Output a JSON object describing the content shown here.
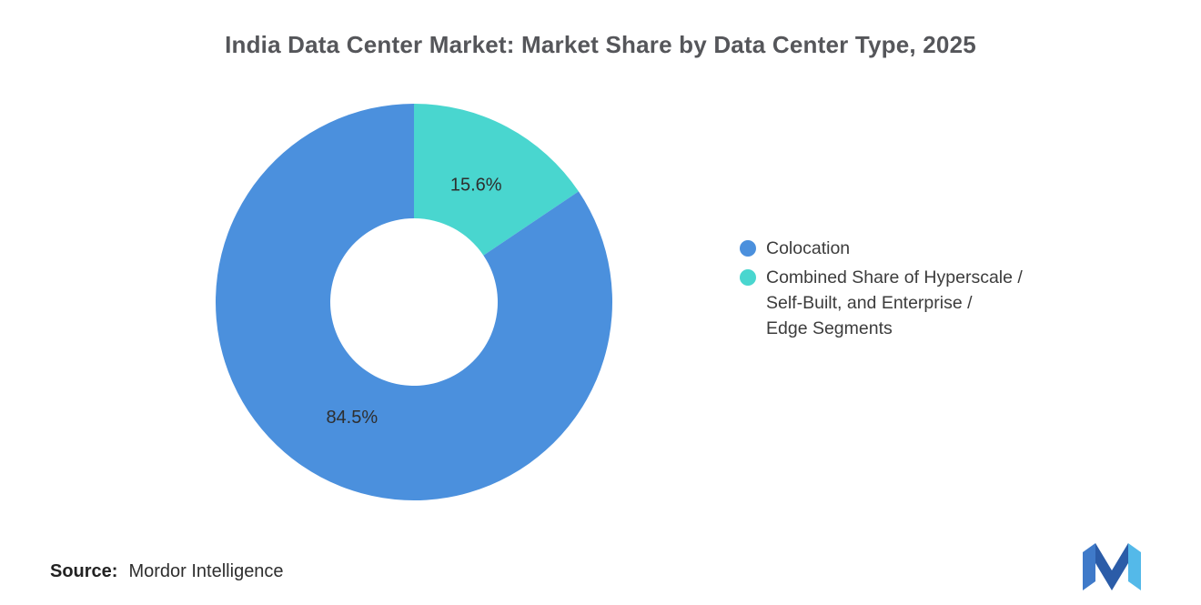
{
  "chart_data": {
    "type": "pie",
    "donut": true,
    "start_angle_deg": 0,
    "direction": "clockwise",
    "title": "India Data Center Market: Market Share by Data Center Type, 2025",
    "legend_position": "right",
    "slices": [
      {
        "id": "hyperscale-enterprise-edge",
        "name": "Combined Share of Hyperscale / Self-Built, and Enterprise / Edge Segments",
        "value": 15.6,
        "label": "15.6%",
        "color": "#49D6CF"
      },
      {
        "id": "colocation",
        "name": "Colocation",
        "value": 84.5,
        "label": "84.5%",
        "color": "#4B90DD"
      }
    ]
  },
  "legend": {
    "items": [
      {
        "label": "Colocation",
        "color": "#4B90DD"
      },
      {
        "label": "Combined Share of Hyperscale /\nSelf-Built, and Enterprise /\nEdge Segments",
        "color": "#49D6CF"
      }
    ]
  },
  "source": {
    "prefix": "Source:",
    "text": "Mordor Intelligence"
  },
  "logo": {
    "name": "mordor-intelligence-logo",
    "colors": {
      "left": "#3F7AC9",
      "mid": "#2B5CA8",
      "right": "#54B9E9"
    }
  }
}
